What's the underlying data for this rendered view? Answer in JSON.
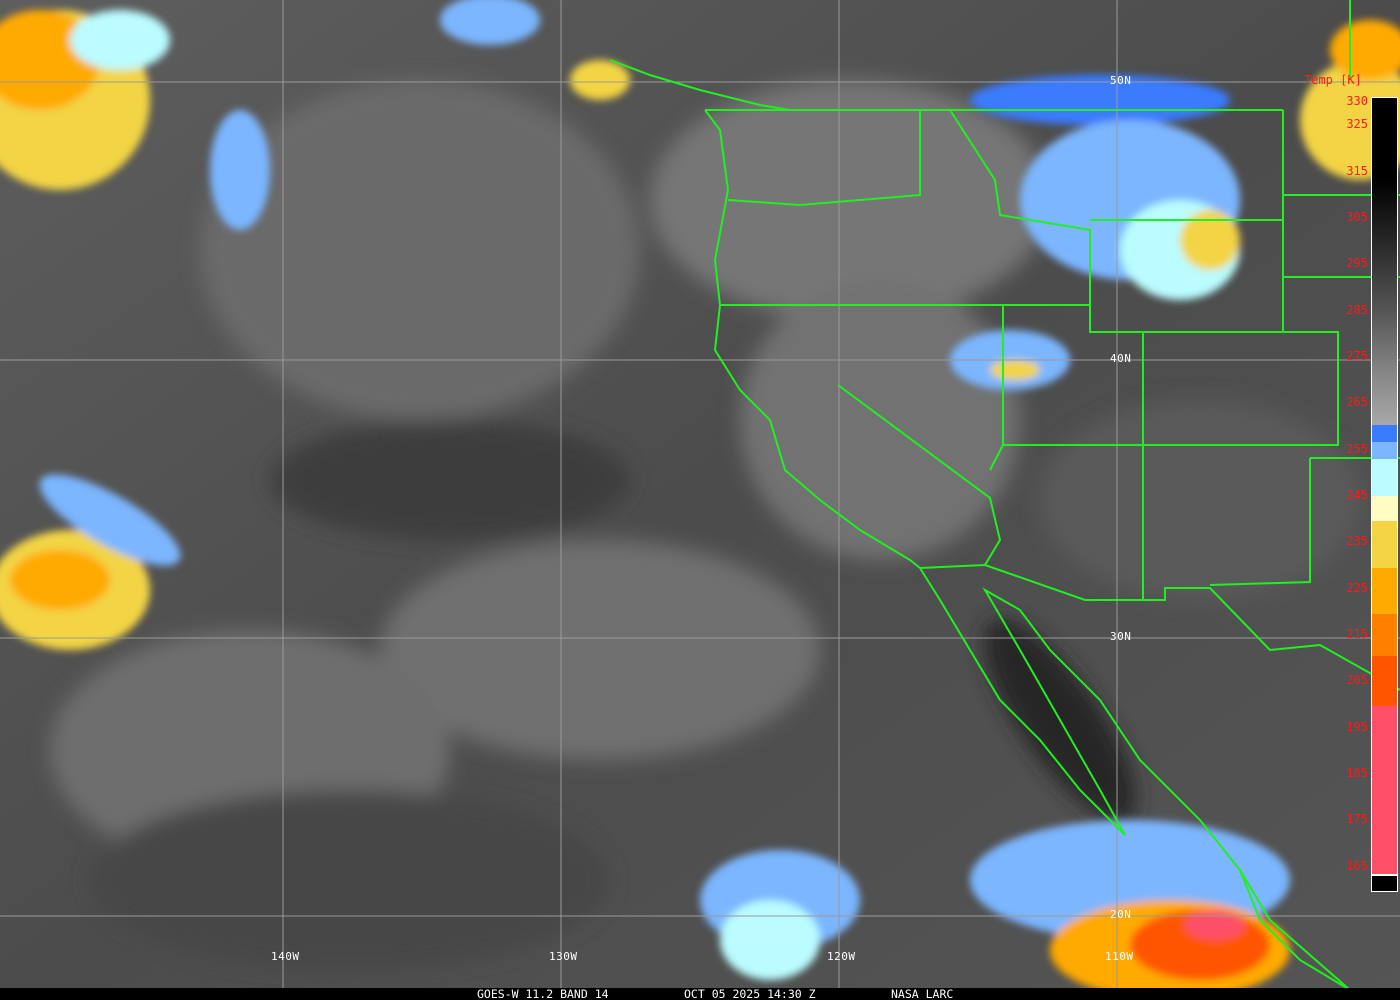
{
  "caption": {
    "satellite": "GOES-W 11.2 BAND 14",
    "datetime": "OCT 05 2025 14:30 Z",
    "credit": "NASA LARC"
  },
  "grid": {
    "latitudes": [
      "50N",
      "40N",
      "30N",
      "20N"
    ],
    "longitudes": [
      "140W",
      "130W",
      "120W",
      "110W"
    ]
  },
  "colorbar": {
    "title": "Temp [K]",
    "labels": [
      "330",
      "325",
      "315",
      "305",
      "295",
      "285",
      "275",
      "265",
      "255",
      "245",
      "235",
      "225",
      "215",
      "205",
      "195",
      "185",
      "175",
      "165"
    ],
    "colors": {
      "grayscale_top": "#000000",
      "grayscale_bottom": "#a8a8a8",
      "blue": "#3a7cff",
      "light_blue": "#7cb6ff",
      "pale_cyan": "#bafcff",
      "pale_yellow": "#fffcc4",
      "yellow": "#f3d444",
      "orange": "#ffaa00",
      "dark_orange": "#ff8000",
      "red_orange": "#ff5400",
      "pink": "#ff5068"
    }
  },
  "map_colors": {
    "boundaries": "#22ee22",
    "grid": "#9a9a9a"
  }
}
